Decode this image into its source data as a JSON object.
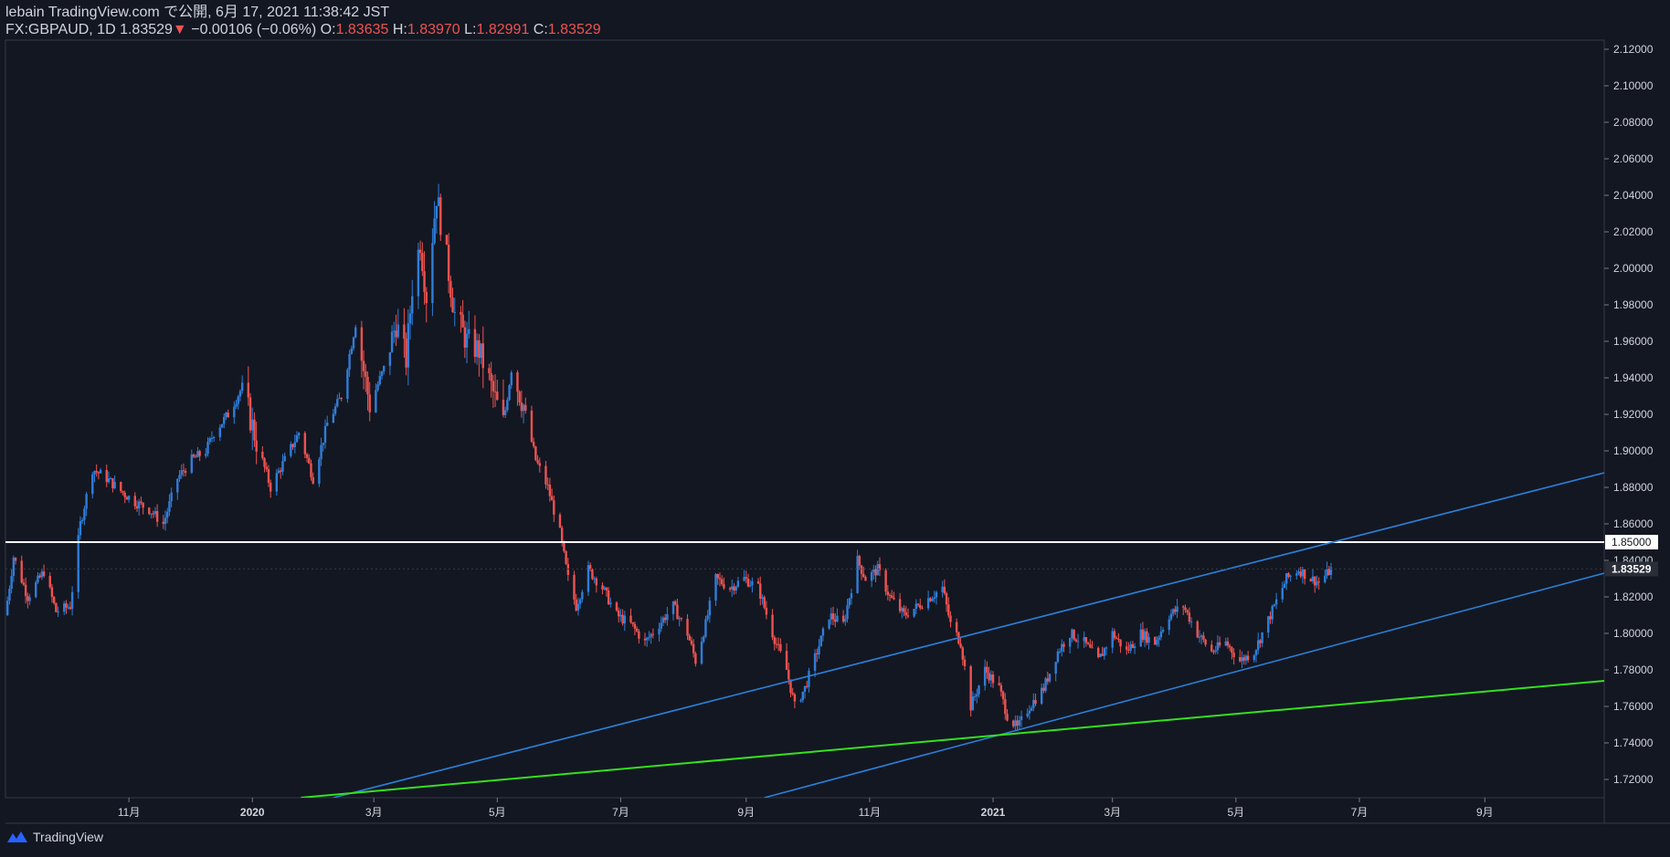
{
  "header": {
    "line1": "lebain TradingView.com で公開, 6月 17, 2021 11:38:42 JST",
    "symbol": "FX:GBPAUD, 1D",
    "last": "1.83529",
    "change": "−0.00106 (−0.06%)",
    "o_label": "O:",
    "o": "1.83635",
    "h_label": "H:",
    "h": "1.83970",
    "l_label": "L:",
    "l": "1.82991",
    "c_label": "C:",
    "c": "1.83529"
  },
  "footer": {
    "brand": "TradingView"
  },
  "colors": {
    "up": "#2962ff",
    "up_body": "#2f7ed8",
    "down": "#ef5350",
    "bg": "#131722",
    "trend": "#2a7fd6",
    "support": "#34e21d",
    "level": "#ffffff"
  },
  "chart_data": {
    "type": "candlestick",
    "symbol": "FX:GBPAUD",
    "interval": "1D",
    "ylim": [
      1.71,
      2.125
    ],
    "y_ticks": [
      "1.72000",
      "1.74000",
      "1.76000",
      "1.78000",
      "1.80000",
      "1.82000",
      "1.84000",
      "1.86000",
      "1.88000",
      "1.90000",
      "1.92000",
      "1.94000",
      "1.96000",
      "1.98000",
      "2.00000",
      "2.02000",
      "2.04000",
      "2.06000",
      "2.08000",
      "2.10000",
      "2.12000"
    ],
    "x_ticks": [
      {
        "label": "11月",
        "date": "2019-11-01"
      },
      {
        "label": "2020",
        "date": "2020-01-01"
      },
      {
        "label": "3月",
        "date": "2020-03-01"
      },
      {
        "label": "5月",
        "date": "2020-05-01"
      },
      {
        "label": "7月",
        "date": "2020-07-01"
      },
      {
        "label": "9月",
        "date": "2020-09-01"
      },
      {
        "label": "11月",
        "date": "2020-11-01"
      },
      {
        "label": "2021",
        "date": "2021-01-01"
      },
      {
        "label": "3月",
        "date": "2021-03-01"
      },
      {
        "label": "5月",
        "date": "2021-05-01"
      },
      {
        "label": "7月",
        "date": "2021-07-01"
      },
      {
        "label": "9月",
        "date": "2021-09-01"
      }
    ],
    "price_label": "1.83529",
    "level_label": "1.85000",
    "horizontal_level": 1.85,
    "trendlines": [
      {
        "name": "upper channel",
        "color": "#2a7fd6",
        "points": [
          [
            "2020-02-10",
            1.71
          ],
          [
            "2021-10-30",
            1.888
          ]
        ]
      },
      {
        "name": "lower channel",
        "color": "#2a7fd6",
        "points": [
          [
            "2020-09-10",
            1.71
          ],
          [
            "2021-10-30",
            1.833
          ]
        ]
      },
      {
        "name": "support",
        "color": "#34e21d",
        "points": [
          [
            "2020-01-25",
            1.71
          ],
          [
            "2021-10-30",
            1.774
          ]
        ]
      }
    ],
    "series": [
      {
        "date": "2019-09-01",
        "close": 1.81
      },
      {
        "date": "2019-09-05",
        "close": 1.842
      },
      {
        "date": "2019-09-12",
        "close": 1.82
      },
      {
        "date": "2019-09-20",
        "close": 1.834
      },
      {
        "date": "2019-09-26",
        "close": 1.812
      },
      {
        "date": "2019-10-03",
        "close": 1.815
      },
      {
        "date": "2019-10-08",
        "close": 1.86
      },
      {
        "date": "2019-10-14",
        "close": 1.89
      },
      {
        "date": "2019-10-21",
        "close": 1.885
      },
      {
        "date": "2019-10-28",
        "close": 1.878
      },
      {
        "date": "2019-11-04",
        "close": 1.872
      },
      {
        "date": "2019-11-11",
        "close": 1.868
      },
      {
        "date": "2019-11-18",
        "close": 1.86
      },
      {
        "date": "2019-11-25",
        "close": 1.885
      },
      {
        "date": "2019-12-02",
        "close": 1.895
      },
      {
        "date": "2019-12-09",
        "close": 1.9
      },
      {
        "date": "2019-12-13",
        "close": 1.91
      },
      {
        "date": "2019-12-20",
        "close": 1.92
      },
      {
        "date": "2019-12-27",
        "close": 1.935
      },
      {
        "date": "2020-01-03",
        "close": 1.905
      },
      {
        "date": "2020-01-10",
        "close": 1.88
      },
      {
        "date": "2020-01-17",
        "close": 1.895
      },
      {
        "date": "2020-01-24",
        "close": 1.91
      },
      {
        "date": "2020-01-31",
        "close": 1.885
      },
      {
        "date": "2020-02-07",
        "close": 1.915
      },
      {
        "date": "2020-02-14",
        "close": 1.93
      },
      {
        "date": "2020-02-21",
        "close": 1.97
      },
      {
        "date": "2020-02-28",
        "close": 1.925
      },
      {
        "date": "2020-03-06",
        "close": 1.945
      },
      {
        "date": "2020-03-12",
        "close": 1.97
      },
      {
        "date": "2020-03-17",
        "close": 1.95
      },
      {
        "date": "2020-03-20",
        "close": 1.99
      },
      {
        "date": "2020-03-24",
        "close": 2.015
      },
      {
        "date": "2020-03-27",
        "close": 1.985
      },
      {
        "date": "2020-04-01",
        "close": 2.04
      },
      {
        "date": "2020-04-06",
        "close": 2.005
      },
      {
        "date": "2020-04-10",
        "close": 1.975
      },
      {
        "date": "2020-04-16",
        "close": 1.96
      },
      {
        "date": "2020-04-22",
        "close": 1.955
      },
      {
        "date": "2020-04-28",
        "close": 1.935
      },
      {
        "date": "2020-05-04",
        "close": 1.915
      },
      {
        "date": "2020-05-08",
        "close": 1.945
      },
      {
        "date": "2020-05-14",
        "close": 1.925
      },
      {
        "date": "2020-05-20",
        "close": 1.895
      },
      {
        "date": "2020-05-26",
        "close": 1.88
      },
      {
        "date": "2020-06-01",
        "close": 1.855
      },
      {
        "date": "2020-06-05",
        "close": 1.83
      },
      {
        "date": "2020-06-09",
        "close": 1.815
      },
      {
        "date": "2020-06-15",
        "close": 1.835
      },
      {
        "date": "2020-06-22",
        "close": 1.825
      },
      {
        "date": "2020-06-29",
        "close": 1.81
      },
      {
        "date": "2020-07-06",
        "close": 1.805
      },
      {
        "date": "2020-07-13",
        "close": 1.795
      },
      {
        "date": "2020-07-20",
        "close": 1.805
      },
      {
        "date": "2020-07-27",
        "close": 1.815
      },
      {
        "date": "2020-08-03",
        "close": 1.8
      },
      {
        "date": "2020-08-07",
        "close": 1.785
      },
      {
        "date": "2020-08-12",
        "close": 1.805
      },
      {
        "date": "2020-08-17",
        "close": 1.83
      },
      {
        "date": "2020-08-24",
        "close": 1.825
      },
      {
        "date": "2020-08-31",
        "close": 1.83
      },
      {
        "date": "2020-09-07",
        "close": 1.825
      },
      {
        "date": "2020-09-14",
        "close": 1.8
      },
      {
        "date": "2020-09-21",
        "close": 1.78
      },
      {
        "date": "2020-09-25",
        "close": 1.76
      },
      {
        "date": "2020-09-30",
        "close": 1.77
      },
      {
        "date": "2020-10-06",
        "close": 1.79
      },
      {
        "date": "2020-10-12",
        "close": 1.81
      },
      {
        "date": "2020-10-19",
        "close": 1.805
      },
      {
        "date": "2020-10-26",
        "close": 1.84
      },
      {
        "date": "2020-10-30",
        "close": 1.83
      },
      {
        "date": "2020-11-05",
        "close": 1.835
      },
      {
        "date": "2020-11-11",
        "close": 1.82
      },
      {
        "date": "2020-11-18",
        "close": 1.81
      },
      {
        "date": "2020-11-25",
        "close": 1.815
      },
      {
        "date": "2020-12-01",
        "close": 1.82
      },
      {
        "date": "2020-12-07",
        "close": 1.825
      },
      {
        "date": "2020-12-11",
        "close": 1.805
      },
      {
        "date": "2020-12-16",
        "close": 1.795
      },
      {
        "date": "2020-12-21",
        "close": 1.76
      },
      {
        "date": "2020-12-28",
        "close": 1.78
      },
      {
        "date": "2021-01-04",
        "close": 1.77
      },
      {
        "date": "2021-01-08",
        "close": 1.755
      },
      {
        "date": "2021-01-13",
        "close": 1.748
      },
      {
        "date": "2021-01-19",
        "close": 1.76
      },
      {
        "date": "2021-01-26",
        "close": 1.77
      },
      {
        "date": "2021-02-02",
        "close": 1.79
      },
      {
        "date": "2021-02-08",
        "close": 1.8
      },
      {
        "date": "2021-02-15",
        "close": 1.795
      },
      {
        "date": "2021-02-22",
        "close": 1.785
      },
      {
        "date": "2021-03-01",
        "close": 1.8
      },
      {
        "date": "2021-03-08",
        "close": 1.79
      },
      {
        "date": "2021-03-15",
        "close": 1.8
      },
      {
        "date": "2021-03-22",
        "close": 1.795
      },
      {
        "date": "2021-03-29",
        "close": 1.81
      },
      {
        "date": "2021-04-05",
        "close": 1.815
      },
      {
        "date": "2021-04-12",
        "close": 1.8
      },
      {
        "date": "2021-04-19",
        "close": 1.79
      },
      {
        "date": "2021-04-26",
        "close": 1.795
      },
      {
        "date": "2021-05-03",
        "close": 1.785
      },
      {
        "date": "2021-05-10",
        "close": 1.79
      },
      {
        "date": "2021-05-14",
        "close": 1.8
      },
      {
        "date": "2021-05-20",
        "close": 1.815
      },
      {
        "date": "2021-05-26",
        "close": 1.83
      },
      {
        "date": "2021-06-01",
        "close": 1.835
      },
      {
        "date": "2021-06-07",
        "close": 1.83
      },
      {
        "date": "2021-06-11",
        "close": 1.828
      },
      {
        "date": "2021-06-17",
        "close": 1.835
      }
    ]
  }
}
